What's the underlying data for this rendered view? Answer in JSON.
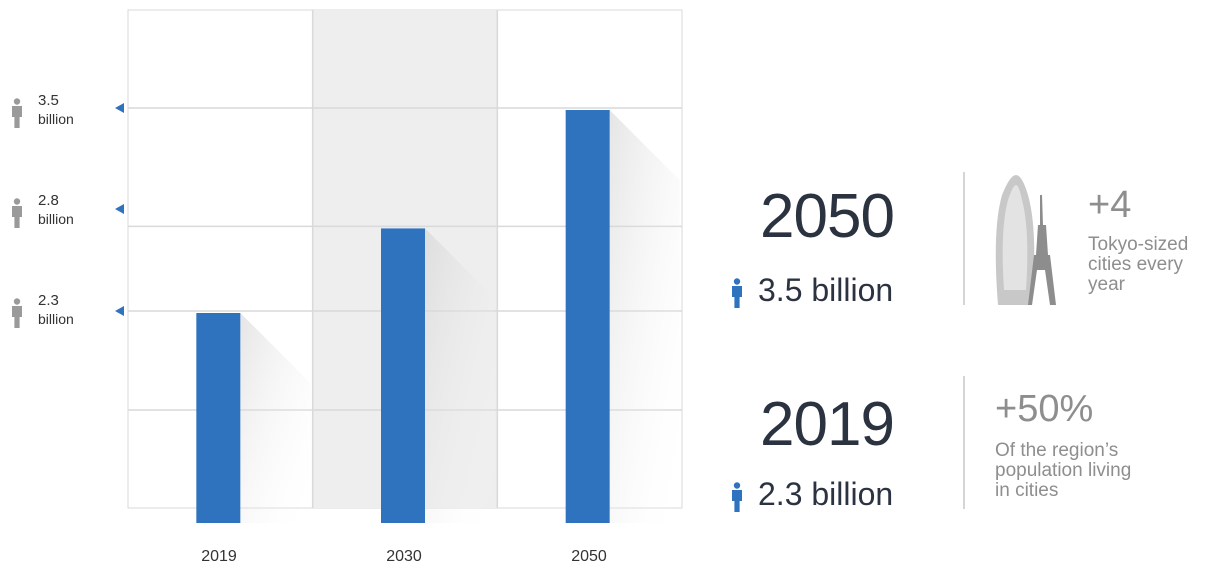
{
  "chart_data": {
    "type": "bar",
    "categories": [
      "2019",
      "2030",
      "2050"
    ],
    "values": [
      2.3,
      2.8,
      3.5
    ],
    "y_tick_labels": [
      {
        "value": 3.5,
        "num": "3.5",
        "unit": "billion"
      },
      {
        "value": 2.8,
        "num": "2.8",
        "unit": "billion"
      },
      {
        "value": 2.3,
        "num": "2.3",
        "unit": "billion"
      }
    ],
    "unit": "billion",
    "bar_color": "#2f72bd",
    "grid": true
  },
  "stats": [
    {
      "year": "2050",
      "population": "3.5 billion",
      "plus": "+4",
      "description_lines": [
        "Tokyo-sized",
        "cities every",
        "year"
      ],
      "icon": "tokyo-skyline-icon"
    },
    {
      "year": "2019",
      "population": "2.3 billion",
      "plus": "+50%",
      "description_lines": [
        "Of the region’s",
        "population living",
        "in cities"
      ]
    }
  ],
  "colors": {
    "accent": "#2f72bd",
    "person_gray": "#9a9a9a",
    "text_dark": "#2b3240",
    "text_gray": "#8e8e8e"
  }
}
